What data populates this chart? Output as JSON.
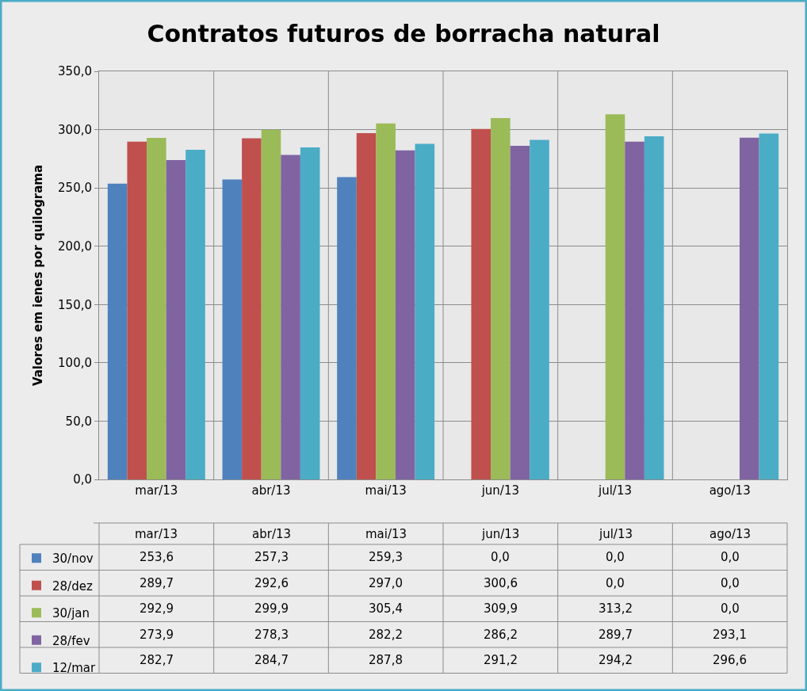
{
  "chart_data": {
    "type": "bar",
    "title": "Contratos futuros de borracha natural",
    "ylabel": "Valores em ienes por quilograma",
    "categories": [
      "mar/13",
      "abr/13",
      "mai/13",
      "jun/13",
      "jul/13",
      "ago/13"
    ],
    "series": [
      {
        "name": "30/nov",
        "color": "#4f81bd",
        "values": [
          253.6,
          257.3,
          259.3,
          0.0,
          0.0,
          0.0
        ],
        "value_labels": [
          "253,6",
          "257,3",
          "259,3",
          "0,0",
          "0,0",
          "0,0"
        ]
      },
      {
        "name": "28/dez",
        "color": "#c0504d",
        "values": [
          289.7,
          292.6,
          297.0,
          300.6,
          0.0,
          0.0
        ],
        "value_labels": [
          "289,7",
          "292,6",
          "297,0",
          "300,6",
          "0,0",
          "0,0"
        ]
      },
      {
        "name": "30/jan",
        "color": "#9bbb59",
        "values": [
          292.9,
          299.9,
          305.4,
          309.9,
          313.2,
          0.0
        ],
        "value_labels": [
          "292,9",
          "299,9",
          "305,4",
          "309,9",
          "313,2",
          "0,0"
        ]
      },
      {
        "name": "28/fev",
        "color": "#8064a2",
        "values": [
          273.9,
          278.3,
          282.2,
          286.2,
          289.7,
          293.1
        ],
        "value_labels": [
          "273,9",
          "278,3",
          "282,2",
          "286,2",
          "289,7",
          "293,1"
        ]
      },
      {
        "name": "12/mar",
        "color": "#4bacc6",
        "values": [
          282.7,
          284.7,
          287.8,
          291.2,
          294.2,
          296.6
        ],
        "value_labels": [
          "282,7",
          "284,7",
          "287,8",
          "291,2",
          "294,2",
          "296,6"
        ]
      }
    ],
    "ylim": [
      0,
      350
    ],
    "yticks": [
      {
        "value": 0,
        "label": "0,0"
      },
      {
        "value": 50,
        "label": "50,0"
      },
      {
        "value": 100,
        "label": "100,0"
      },
      {
        "value": 150,
        "label": "150,0"
      },
      {
        "value": 200,
        "label": "200,0"
      },
      {
        "value": 250,
        "label": "250,0"
      },
      {
        "value": 300,
        "label": "300,0"
      },
      {
        "value": 350,
        "label": "350,0"
      }
    ],
    "grid": true,
    "legend": "bottom left"
  }
}
